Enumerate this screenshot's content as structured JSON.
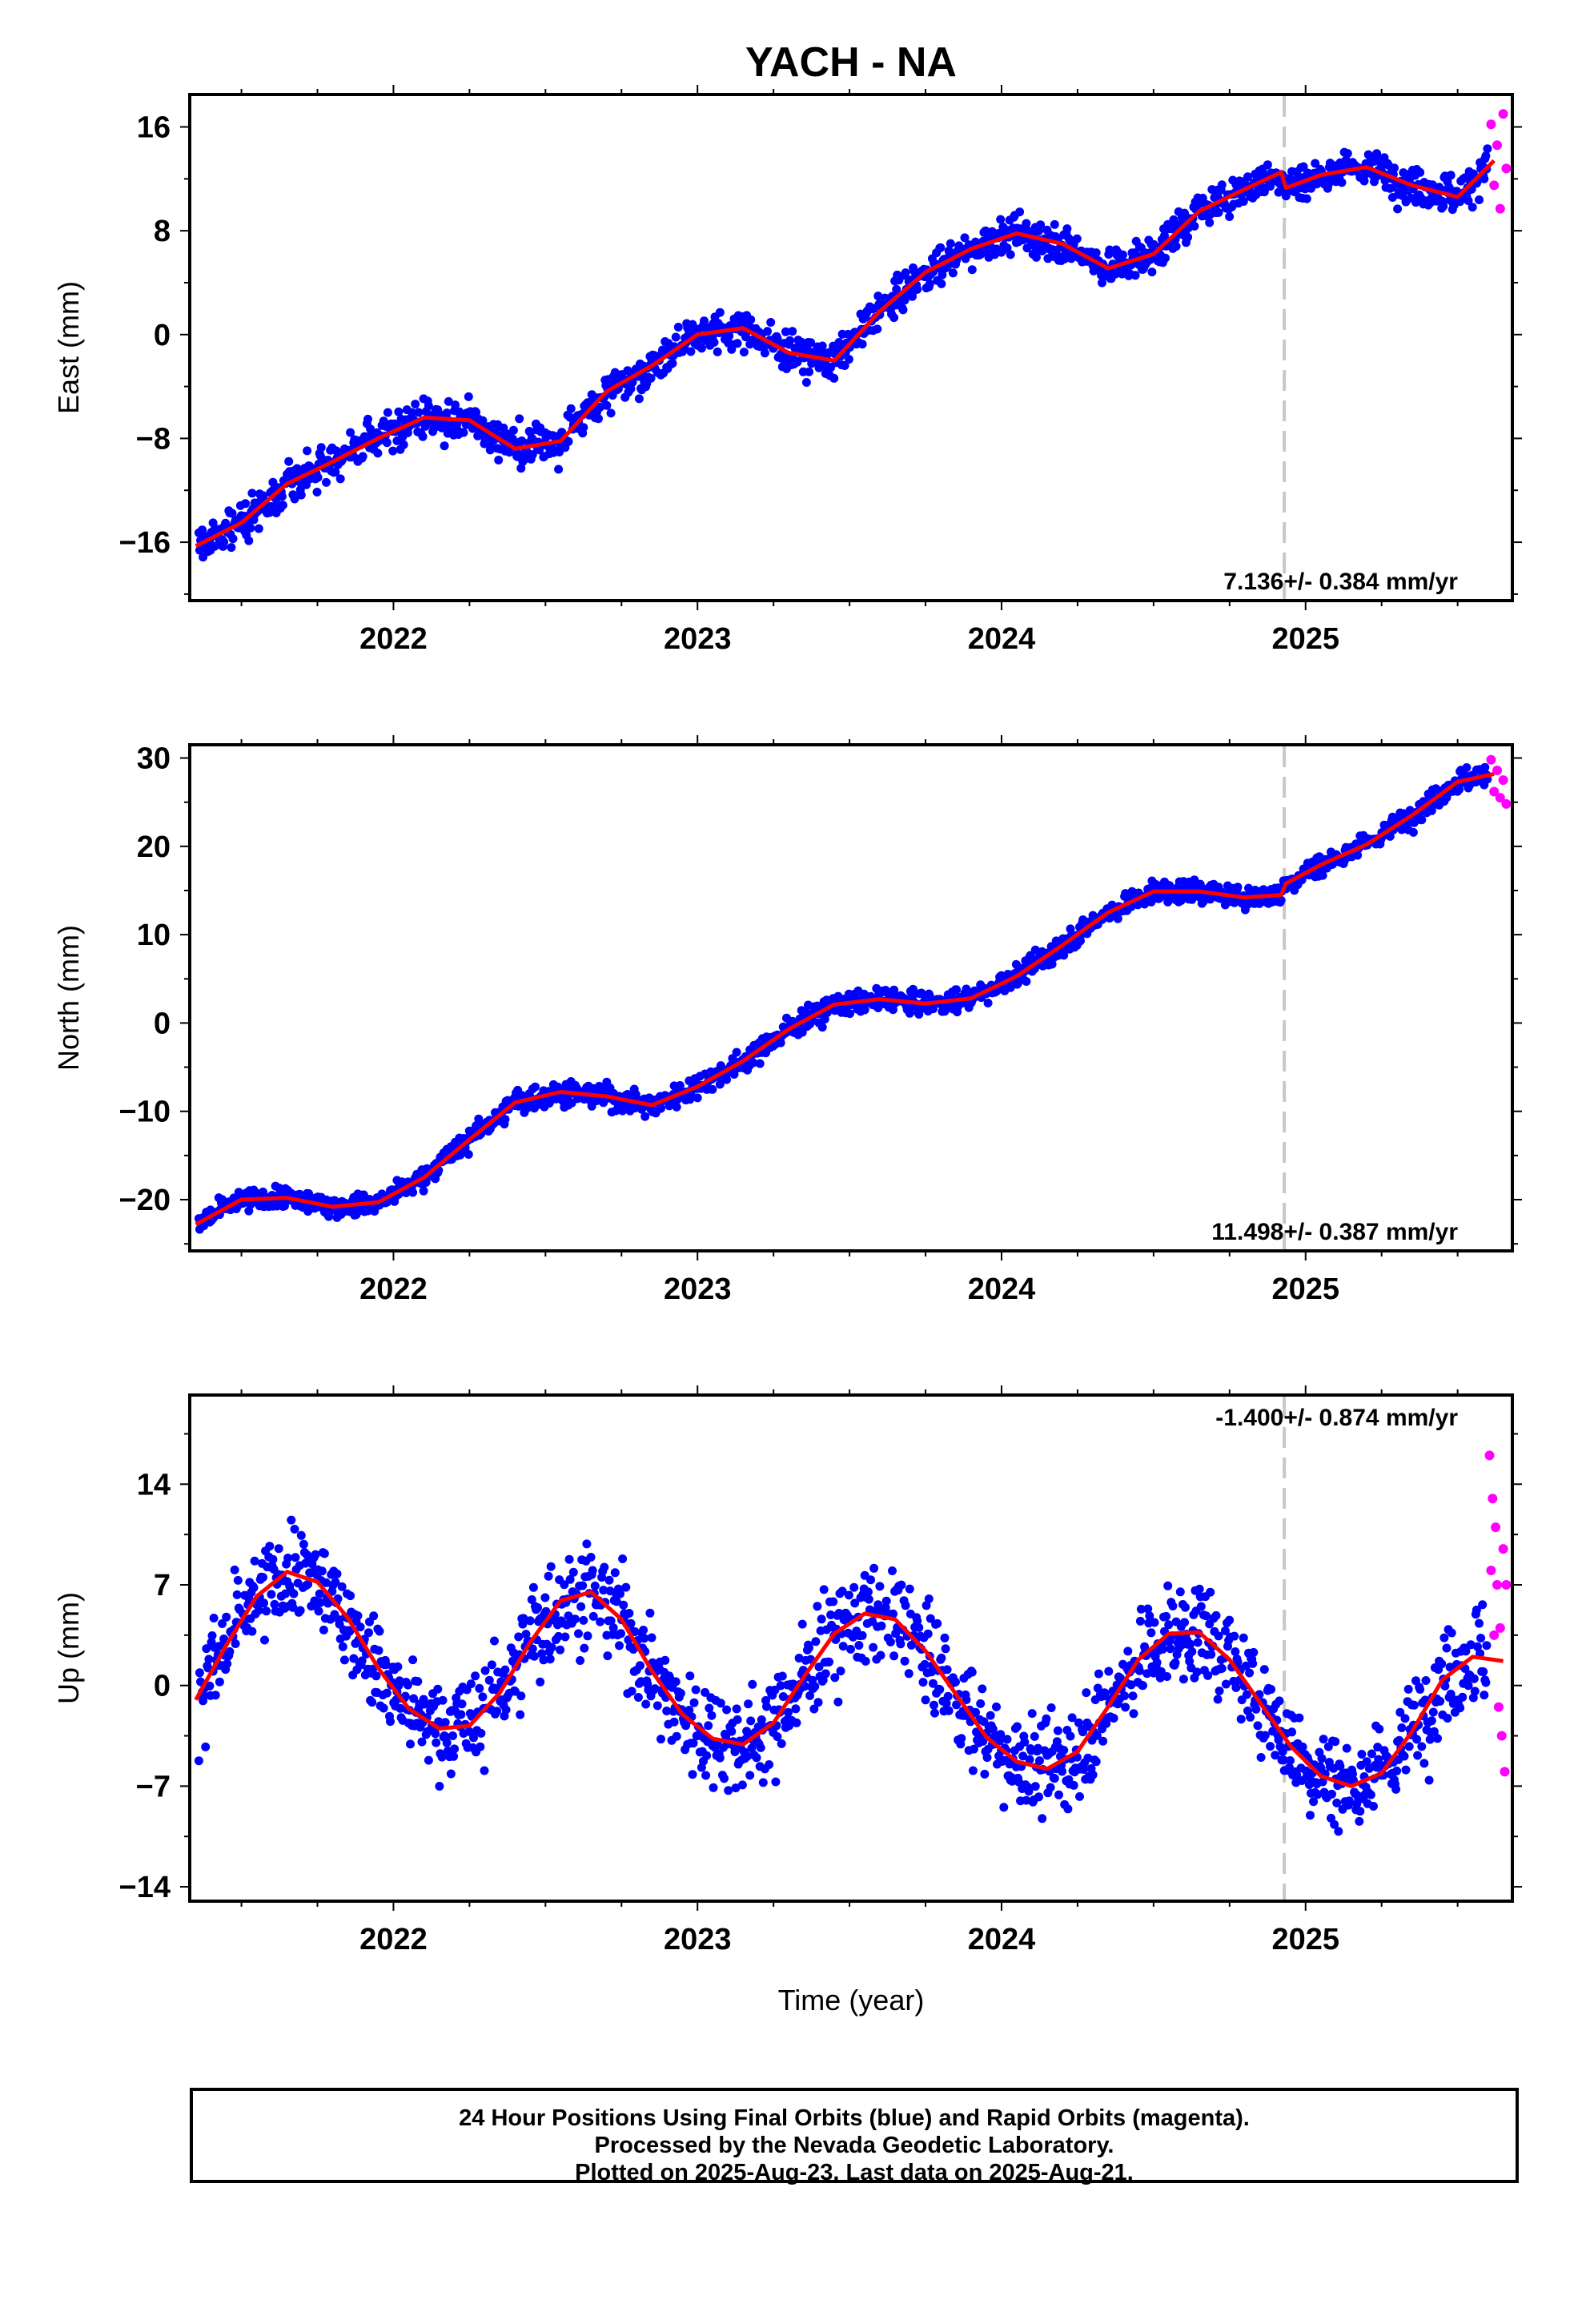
{
  "chart_data": {
    "type": "scatter",
    "title": "YACH - NA",
    "xlabel": "Time (year)",
    "xlim": [
      2021.33,
      2025.68
    ],
    "x_ticks": [
      2022,
      2023,
      2024,
      2025
    ],
    "x_tick_labels": [
      "2022",
      "2023",
      "2024",
      "2025"
    ],
    "vertical_marker_x": 2024.93,
    "colors": {
      "final": "#0000ff",
      "rapid": "#ff00ff",
      "model": "#ff0000",
      "marker": "#c8c8c8"
    },
    "panels": [
      {
        "ylabel": "East (mm)",
        "ylim": [
          -20.5,
          18.5
        ],
        "y_ticks": [
          16,
          8,
          0,
          -8,
          -16
        ],
        "y_tick_labels": [
          "16",
          "8",
          "0",
          "−8",
          "−16"
        ],
        "rate_label": "7.136+/- 0.384 mm/yr",
        "rate_position": "bottom-right",
        "model_x": [
          2021.35,
          2021.5,
          2021.65,
          2021.8,
          2021.95,
          2022.1,
          2022.25,
          2022.4,
          2022.55,
          2022.7,
          2022.85,
          2023.0,
          2023.15,
          2023.3,
          2023.45,
          2023.6,
          2023.75,
          2023.9,
          2024.05,
          2024.2,
          2024.35,
          2024.5,
          2024.65,
          2024.8,
          2024.92,
          2024.935,
          2025.05,
          2025.2,
          2025.35,
          2025.5,
          2025.62
        ],
        "model_y": [
          -16.3,
          -14.5,
          -11.5,
          -9.8,
          -8.0,
          -6.4,
          -6.6,
          -8.8,
          -8.2,
          -4.4,
          -2.4,
          0.0,
          0.5,
          -1.4,
          -2.0,
          1.8,
          4.8,
          6.6,
          7.8,
          7.0,
          5.1,
          6.2,
          9.5,
          11.2,
          12.5,
          11.3,
          12.3,
          12.9,
          11.5,
          10.6,
          13.4
        ],
        "rapid_x": [
          2025.61,
          2025.62,
          2025.63,
          2025.64,
          2025.65,
          2025.66
        ],
        "rapid_y": [
          16.2,
          11.5,
          14.6,
          9.7,
          17.0,
          12.8
        ]
      },
      {
        "ylabel": "North (mm)",
        "ylim": [
          -25.8,
          31.5
        ],
        "y_ticks": [
          30,
          20,
          10,
          0,
          -10,
          -20
        ],
        "y_tick_labels": [
          "30",
          "20",
          "10",
          "0",
          "−10",
          "−20"
        ],
        "rate_label": "11.498+/- 0.387 mm/yr",
        "rate_position": "bottom-right",
        "model_x": [
          2021.35,
          2021.5,
          2021.65,
          2021.8,
          2021.95,
          2022.1,
          2022.25,
          2022.4,
          2022.55,
          2022.7,
          2022.85,
          2023.0,
          2023.15,
          2023.3,
          2023.45,
          2023.6,
          2023.75,
          2023.9,
          2024.05,
          2024.2,
          2024.35,
          2024.5,
          2024.65,
          2024.8,
          2024.92,
          2024.935,
          2025.05,
          2025.2,
          2025.35,
          2025.5,
          2025.62
        ],
        "model_y": [
          -22.8,
          -20.0,
          -19.8,
          -20.8,
          -20.3,
          -17.5,
          -13.2,
          -9.0,
          -7.8,
          -8.3,
          -9.3,
          -7.2,
          -4.3,
          -0.7,
          2.1,
          2.7,
          2.2,
          2.8,
          5.3,
          8.8,
          12.5,
          14.9,
          14.9,
          14.2,
          14.5,
          15.8,
          17.9,
          20.2,
          23.5,
          27.3,
          28.2
        ],
        "rapid_x": [
          2025.61,
          2025.62,
          2025.63,
          2025.64,
          2025.65,
          2025.66
        ],
        "rapid_y": [
          29.8,
          26.2,
          28.6,
          25.5,
          27.5,
          24.8
        ]
      },
      {
        "ylabel": "Up (mm)",
        "ylim": [
          -15.0,
          20.2
        ],
        "y_ticks": [
          14,
          7,
          0,
          -7,
          -14
        ],
        "y_tick_labels": [
          "14",
          "7",
          "0",
          "−7",
          "−14"
        ],
        "rate_label": "-1.400+/- 0.874 mm/yr",
        "rate_position": "top-right",
        "model_x": [
          2021.35,
          2021.45,
          2021.55,
          2021.65,
          2021.75,
          2021.85,
          2021.95,
          2022.05,
          2022.15,
          2022.25,
          2022.35,
          2022.45,
          2022.55,
          2022.65,
          2022.75,
          2022.85,
          2022.95,
          2023.05,
          2023.15,
          2023.25,
          2023.35,
          2023.45,
          2023.55,
          2023.65,
          2023.75,
          2023.85,
          2023.95,
          2024.05,
          2024.15,
          2024.25,
          2024.35,
          2024.45,
          2024.55,
          2024.65,
          2024.75,
          2024.85,
          2024.95,
          2025.05,
          2025.15,
          2025.25,
          2025.35,
          2025.45,
          2025.55,
          2025.65
        ],
        "model_y": [
          -1.0,
          2.8,
          6.2,
          7.9,
          7.2,
          4.7,
          1.2,
          -1.6,
          -3.0,
          -2.8,
          -0.5,
          3.0,
          5.9,
          6.5,
          4.6,
          1.0,
          -2.0,
          -3.7,
          -4.1,
          -2.6,
          0.6,
          3.6,
          5.0,
          4.6,
          2.4,
          -0.6,
          -3.6,
          -5.3,
          -5.8,
          -4.6,
          -1.5,
          1.8,
          3.6,
          3.7,
          1.8,
          -1.2,
          -4.2,
          -6.3,
          -7.0,
          -6.1,
          -3.2,
          0.4,
          2.0,
          1.7
        ],
        "rapid_x": [
          2025.605,
          2025.61,
          2025.615,
          2025.62,
          2025.625,
          2025.63,
          2025.635,
          2025.64,
          2025.645,
          2025.65,
          2025.655,
          2025.66
        ],
        "rapid_y": [
          16.0,
          8.0,
          13.0,
          3.5,
          11.0,
          7.0,
          -1.5,
          4.0,
          -3.5,
          9.5,
          -6.0,
          7.0
        ]
      }
    ]
  },
  "footer": {
    "line1": "24 Hour Positions Using Final Orbits (blue) and Rapid Orbits (magenta).",
    "line2": "Processed by the Nevada Geodetic Laboratory.",
    "line3": "Plotted on 2025-Aug-23. Last data on 2025-Aug-21."
  }
}
